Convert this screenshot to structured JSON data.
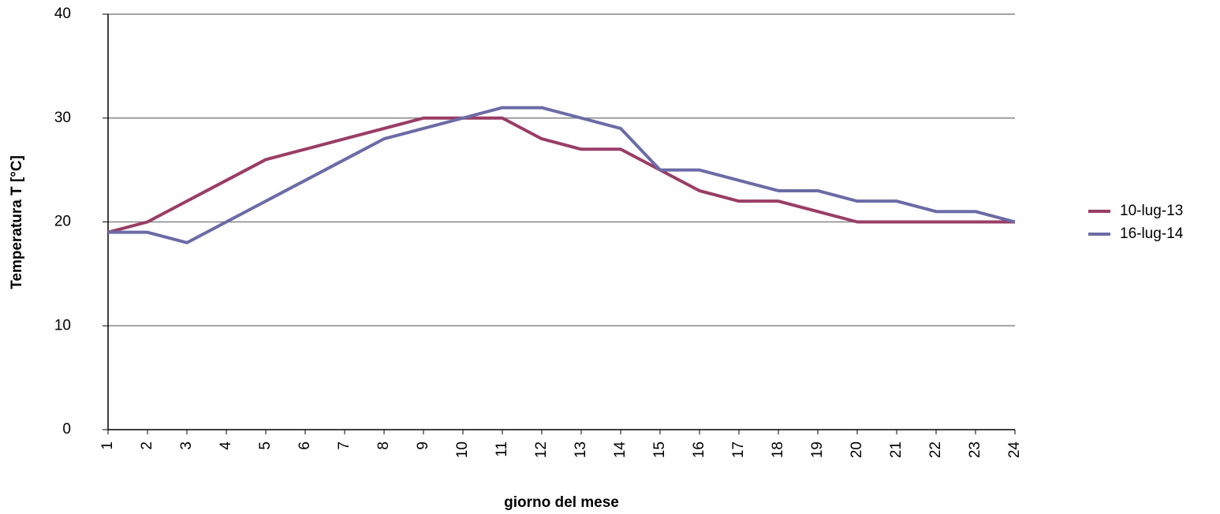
{
  "chart_data": {
    "type": "line",
    "x_label": "giorno del mese",
    "y_label": "Temperatura  T [°C]",
    "categories": [
      "1",
      "2",
      "3",
      "4",
      "5",
      "6",
      "7",
      "8",
      "9",
      "10",
      "11",
      "12",
      "13",
      "14",
      "15",
      "16",
      "17",
      "18",
      "19",
      "20",
      "21",
      "22",
      "23",
      "24"
    ],
    "series": [
      {
        "name": "10-lug-13",
        "color": "#993d66",
        "values": [
          19,
          20,
          22,
          24,
          26,
          27,
          28,
          29,
          30,
          30,
          30,
          28,
          27,
          27,
          25,
          23,
          22,
          22,
          21,
          20,
          20,
          20,
          20,
          20
        ]
      },
      {
        "name": "16-lug-14",
        "color": "#6b6ba6",
        "values": [
          19,
          19,
          18,
          20,
          22,
          24,
          26,
          28,
          29,
          30,
          31,
          31,
          30,
          29,
          25,
          25,
          24,
          23,
          23,
          22,
          22,
          21,
          21,
          20
        ]
      }
    ],
    "ylim": [
      0,
      40
    ],
    "yticks": [
      0,
      10,
      20,
      30,
      40
    ],
    "grid": true,
    "legend": "right"
  }
}
